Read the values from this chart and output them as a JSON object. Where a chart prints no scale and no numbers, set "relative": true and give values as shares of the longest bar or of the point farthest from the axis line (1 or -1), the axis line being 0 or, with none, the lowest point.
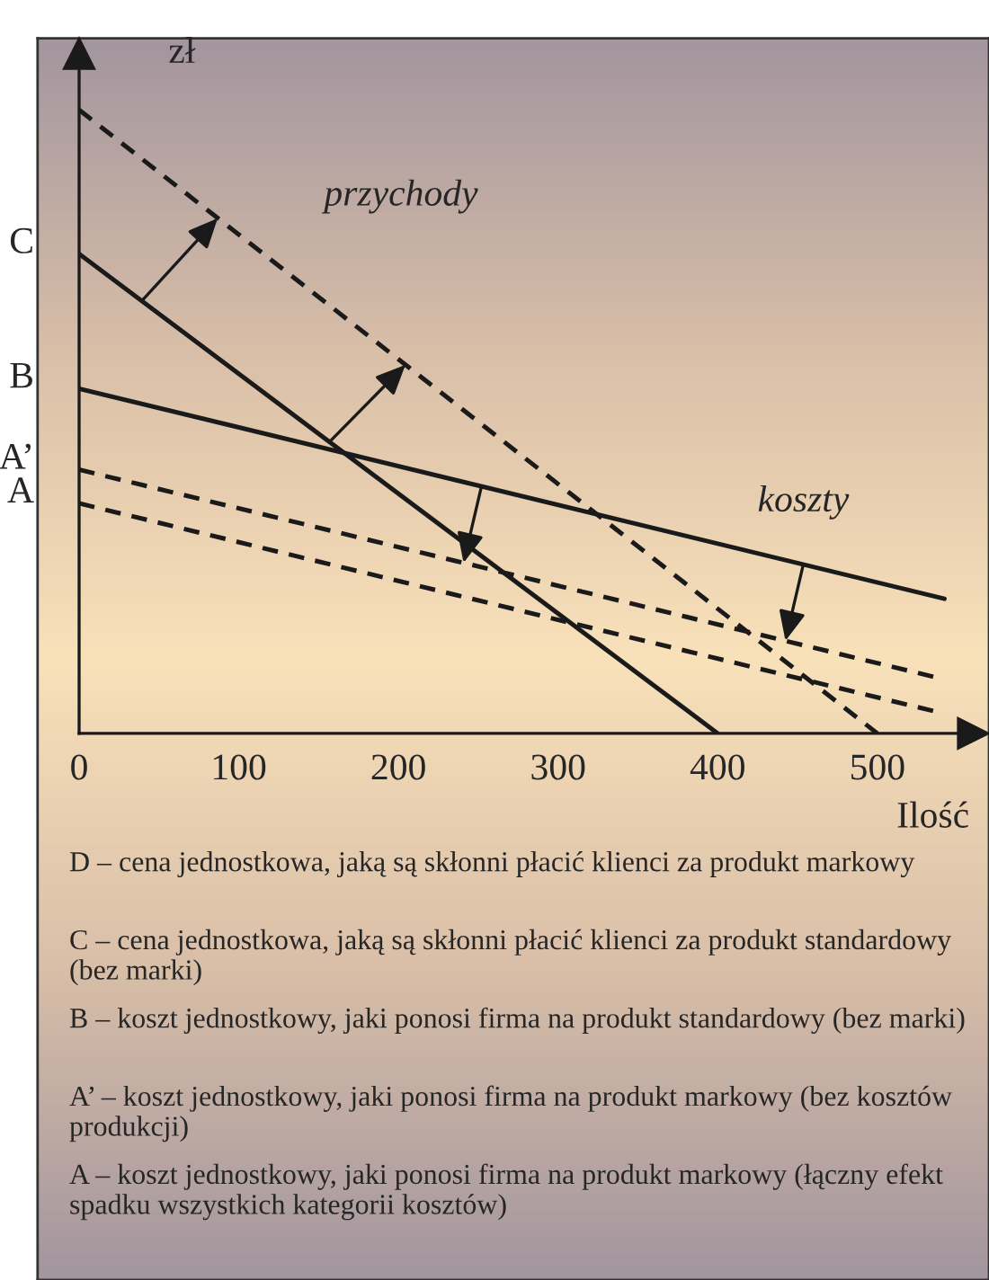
{
  "chart_data": {
    "type": "line",
    "relative": true,
    "xlabel": "Ilość",
    "ylabel": "zł",
    "xlim": [
      0,
      560
    ],
    "xticks": [
      0,
      100,
      200,
      300,
      400,
      500
    ],
    "marker": "none",
    "grid": false,
    "legend": false,
    "tick_labels": "x",
    "series": [
      {
        "color": "#1a1a1a",
        "line_style": "dashed",
        "x": [
          0,
          500
        ],
        "values": [
          1.0,
          0
        ]
      },
      {
        "color": "#1a1a1a",
        "line_style": "solid",
        "x": [
          0,
          400
        ],
        "values": [
          0.769,
          0
        ]
      },
      {
        "color": "#1a1a1a",
        "line_style": "solid",
        "x": [
          0,
          542
        ],
        "values": [
          0.553,
          0.216
        ]
      },
      {
        "color": "#1a1a1a",
        "line_style": "dashed",
        "x": [
          0,
          535
        ],
        "values": [
          0.423,
          0.091
        ]
      },
      {
        "color": "#1a1a1a",
        "line_style": "dashed",
        "x": [
          0,
          535
        ],
        "values": [
          0.369,
          0.036
        ]
      }
    ],
    "annotations": [
      "C",
      "B",
      "A’",
      "A",
      "przychody",
      "koszty",
      "D – cena jednostkowa, jaką są skłonni płacić klienci za produkt markowy",
      "C – cena jednostkowa, jaką są skłonni płacić klienci za produkt standardowy (bez marki)",
      "B – koszt jednostkowy, jaki ponosi firma na produkt standardowy (bez marki)",
      "A’ – koszt jednostkowy, jaki ponosi firma na produkt markowy (bez kosztów produkcji)",
      "A – koszt jednostkowy, jaki ponosi firma na produkt markowy (łączny efekt spadku wszystkich kategorii kosztów)"
    ]
  }
}
